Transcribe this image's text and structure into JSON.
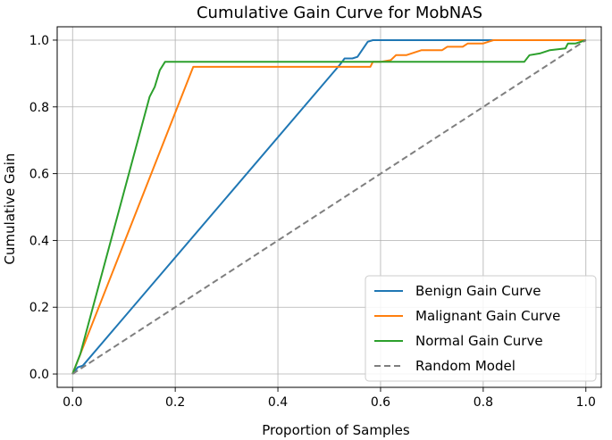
{
  "chart_data": {
    "type": "line",
    "title": "Cumulative Gain Curve for MobNAS",
    "xlabel": "Proportion of Samples",
    "ylabel": "Cumulative Gain",
    "xlim": [
      -0.03,
      1.03
    ],
    "ylim": [
      -0.04,
      1.04
    ],
    "xticks": [
      0.0,
      0.2,
      0.4,
      0.6,
      0.8,
      1.0
    ],
    "xtick_labels": [
      "0.0",
      "0.2",
      "0.4",
      "0.6",
      "0.8",
      "1.0"
    ],
    "yticks": [
      0.0,
      0.2,
      0.4,
      0.6,
      0.8,
      1.0
    ],
    "ytick_labels": [
      "0.0",
      "0.2",
      "0.4",
      "0.6",
      "0.8",
      "1.0"
    ],
    "grid": true,
    "legend_position": "lower right",
    "series": [
      {
        "name": "Benign Gain Curve",
        "color": "#1f77b4",
        "style": "solid",
        "points": [
          [
            0,
            0
          ],
          [
            0.01,
            0.02
          ],
          [
            0.02,
            0.025
          ],
          [
            0.52,
            0.925
          ],
          [
            0.53,
            0.945
          ],
          [
            0.545,
            0.945
          ],
          [
            0.555,
            0.95
          ],
          [
            0.575,
            0.995
          ],
          [
            0.585,
            1.0
          ],
          [
            1.0,
            1.0
          ]
        ]
      },
      {
        "name": "Malignant Gain Curve",
        "color": "#ff7f0e",
        "style": "solid",
        "points": [
          [
            0,
            0
          ],
          [
            0.235,
            0.92
          ],
          [
            0.58,
            0.92
          ],
          [
            0.585,
            0.935
          ],
          [
            0.6,
            0.935
          ],
          [
            0.62,
            0.94
          ],
          [
            0.63,
            0.955
          ],
          [
            0.65,
            0.955
          ],
          [
            0.66,
            0.96
          ],
          [
            0.68,
            0.97
          ],
          [
            0.72,
            0.97
          ],
          [
            0.73,
            0.98
          ],
          [
            0.76,
            0.98
          ],
          [
            0.77,
            0.99
          ],
          [
            0.8,
            0.99
          ],
          [
            0.81,
            0.995
          ],
          [
            0.82,
            1.0
          ],
          [
            1.0,
            1.0
          ]
        ]
      },
      {
        "name": "Normal Gain Curve",
        "color": "#2ca02c",
        "style": "solid",
        "points": [
          [
            0,
            0
          ],
          [
            0.015,
            0.06
          ],
          [
            0.15,
            0.83
          ],
          [
            0.16,
            0.86
          ],
          [
            0.17,
            0.91
          ],
          [
            0.18,
            0.935
          ],
          [
            0.88,
            0.935
          ],
          [
            0.89,
            0.955
          ],
          [
            0.91,
            0.96
          ],
          [
            0.93,
            0.97
          ],
          [
            0.96,
            0.975
          ],
          [
            0.965,
            0.99
          ],
          [
            0.98,
            0.99
          ],
          [
            1.0,
            1.0
          ]
        ]
      },
      {
        "name": "Random Model",
        "color": "#7f7f7f",
        "style": "dashed",
        "points": [
          [
            0,
            0
          ],
          [
            1.0,
            1.0
          ]
        ]
      }
    ]
  }
}
